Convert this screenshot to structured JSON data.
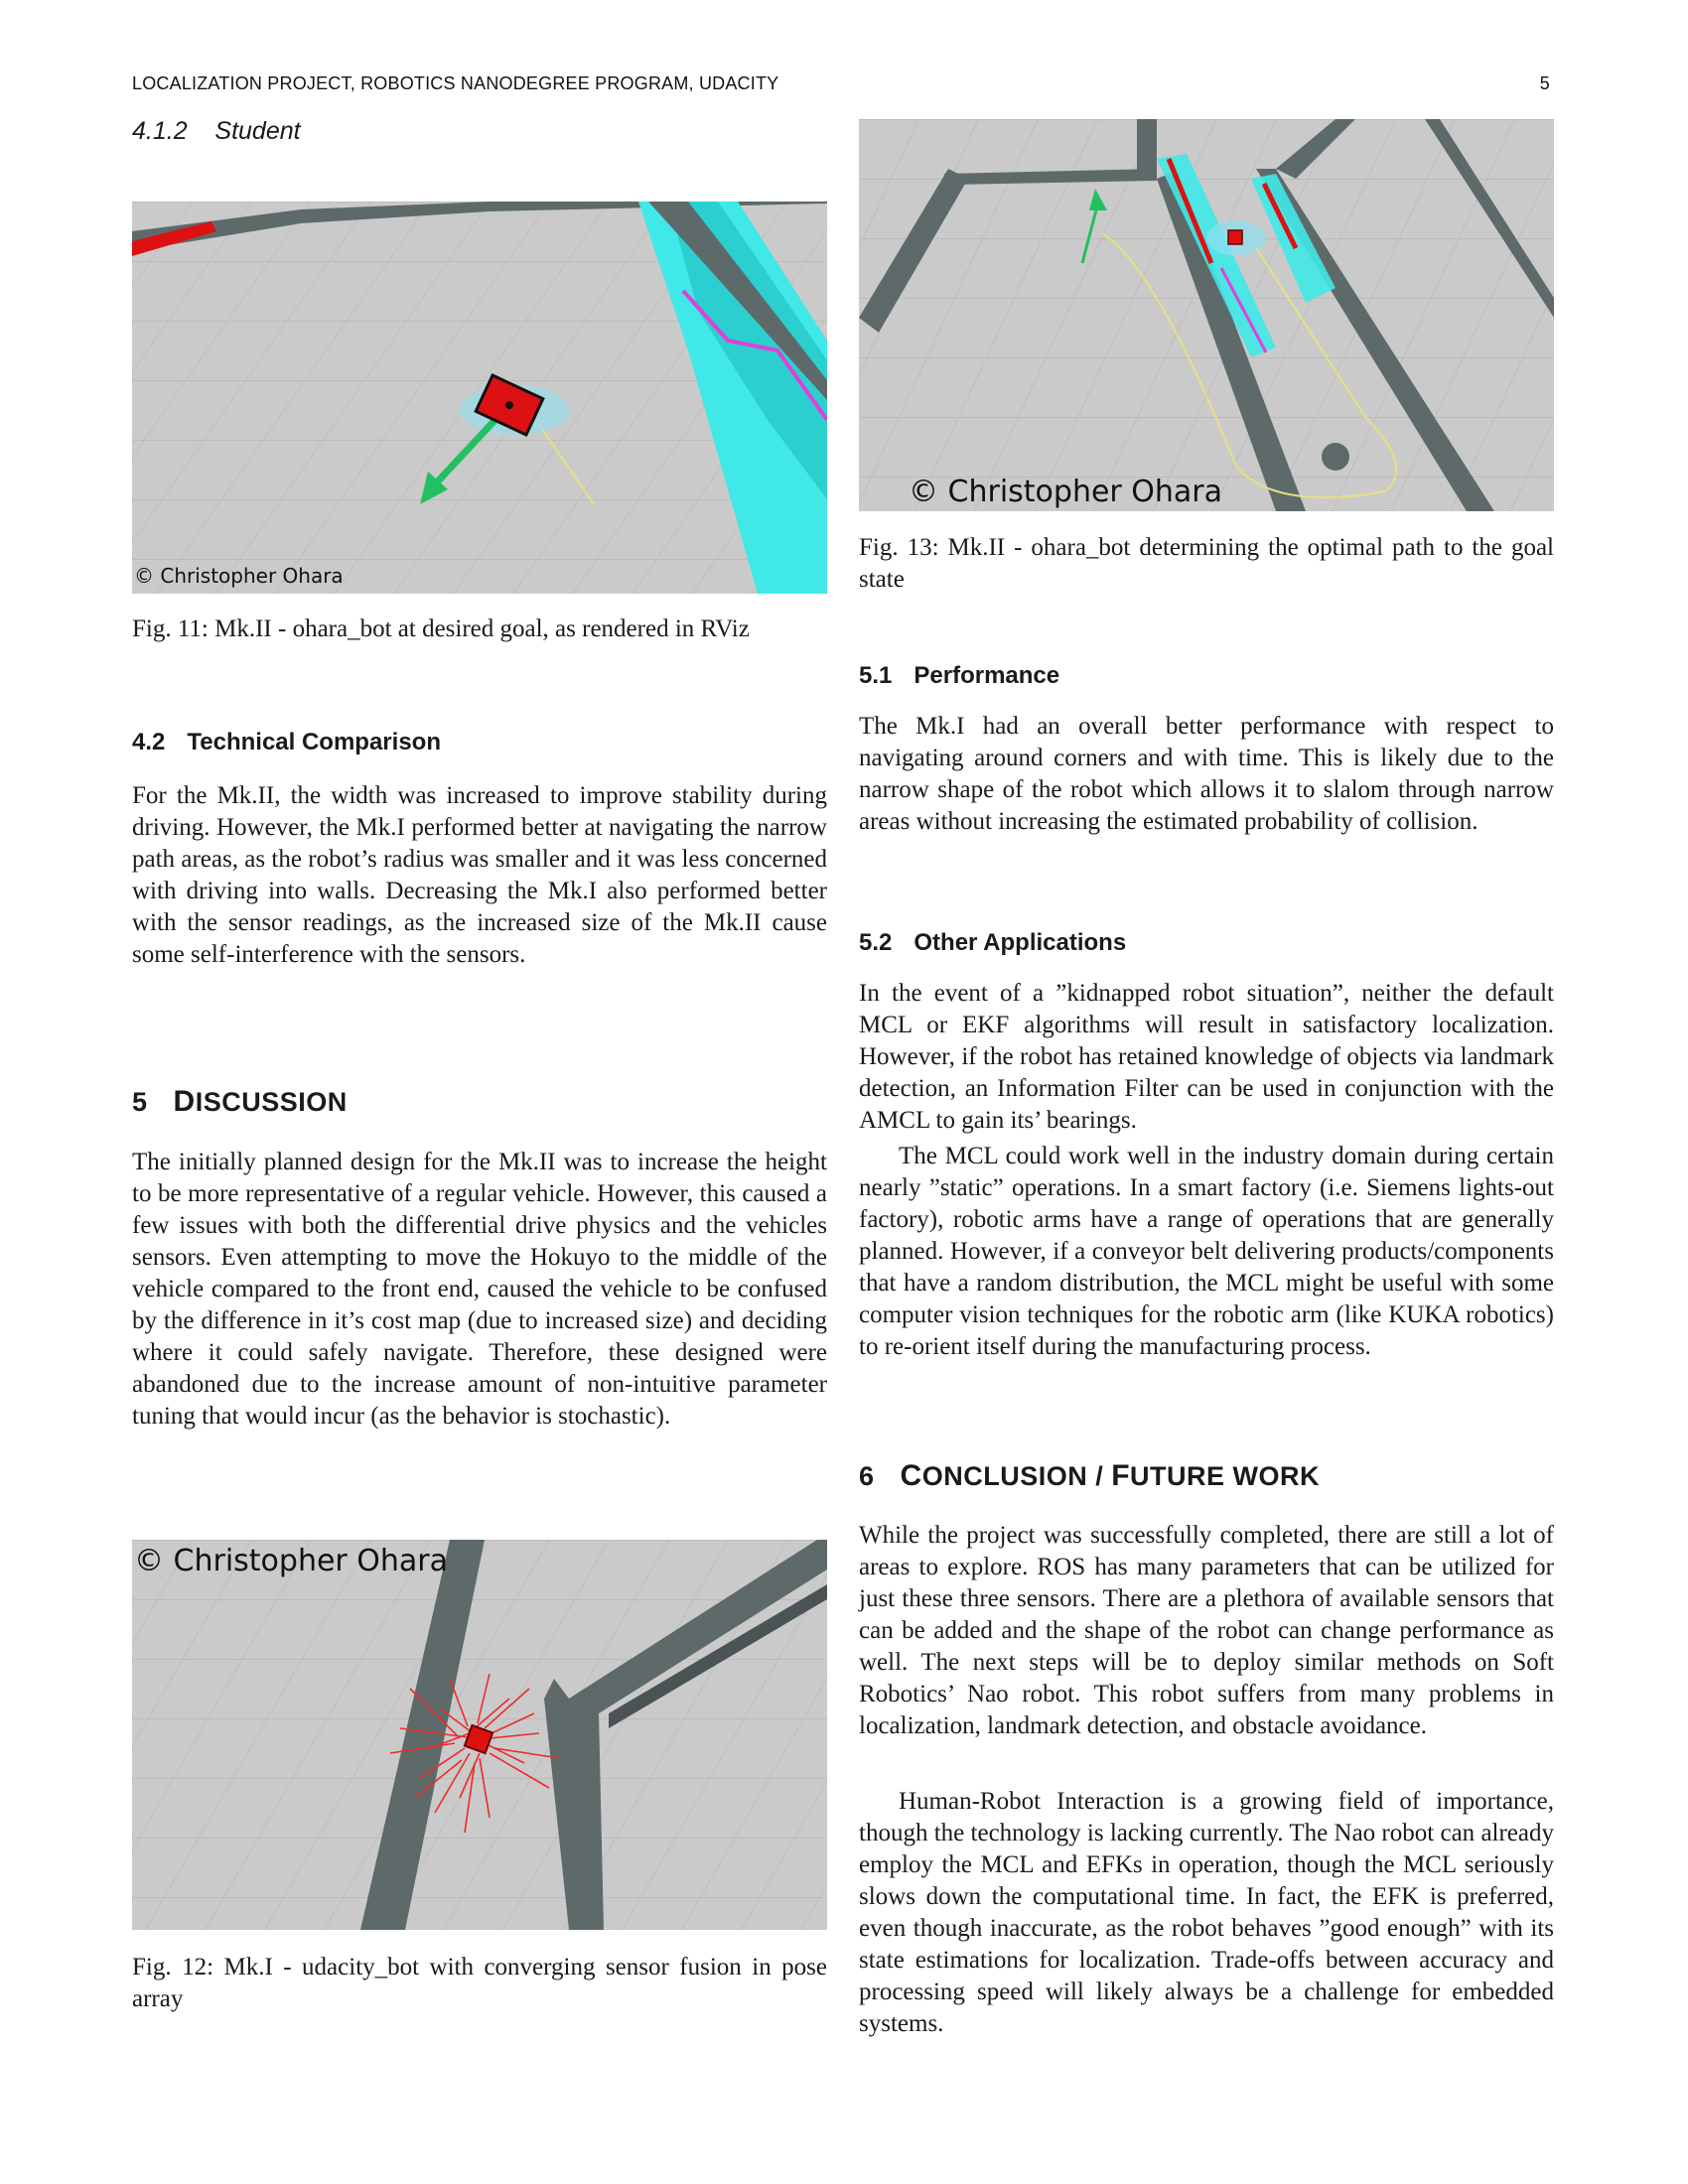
{
  "header": {
    "running_title": "LOCALIZATION PROJECT, ROBOTICS NANODEGREE PROGRAM, UDACITY",
    "page_number": "5"
  },
  "left": {
    "subsubsection": {
      "number": "4.1.2",
      "title": "Student"
    },
    "fig11": {
      "copyright": "© Christopher Ohara",
      "caption": "Fig. 11: Mk.II - ohara_bot at desired goal, as rendered in RViz"
    },
    "section_4_2": {
      "number": "4.2",
      "title": "Technical Comparison",
      "paragraph": "For the Mk.II, the width was increased to improve stability during driving. However, the Mk.I performed better at navigating the narrow path areas, as the robot’s radius was smaller and it was less concerned with driving into walls. Decreasing the Mk.I also performed better with the sensor readings, as the increased size of the Mk.II cause some self-interference with the sensors."
    },
    "section_5": {
      "number": "5",
      "title_first": "D",
      "title_rest": "ISCUSSION",
      "paragraph": "The initially planned design for the Mk.II was to increase the height to be more representative of a regular vehicle. However, this caused a few issues with both the differential drive physics and the vehicles sensors. Even attempting to move the Hokuyo to the middle of the vehicle compared to the front end, caused the vehicle to be confused by the difference in it’s cost map (due to increased size) and deciding where it could safely navigate. Therefore, these designed were abandoned due to the increase amount of non-intuitive parameter tuning that would incur (as the behavior is stochastic)."
    },
    "fig12": {
      "copyright": "© Christopher Ohara",
      "caption": "Fig. 12: Mk.I - udacity_bot with converging sensor fusion in pose array"
    }
  },
  "right": {
    "fig13": {
      "copyright": "© Christopher Ohara",
      "caption": "Fig. 13: Mk.II - ohara_bot determining the optimal path to the goal state"
    },
    "section_5_1": {
      "number": "5.1",
      "title": "Performance",
      "paragraph": "The Mk.I had an overall better performance with respect to navigating around corners and with time. This is likely due to the narrow shape of the robot which allows it to slalom through narrow areas without increasing the estimated probability of collision."
    },
    "section_5_2": {
      "number": "5.2",
      "title": "Other Applications",
      "paragraph1": "In the event of a ”kidnapped robot situation”, neither the default MCL or EKF algorithms will result in satisfactory localization. However, if the robot has retained knowledge of objects via landmark detection, an Information Filter can be used in conjunction with the AMCL to gain its’ bearings.",
      "paragraph2": "The MCL could work well in the industry domain during certain nearly ”static” operations. In a smart factory (i.e. Siemens lights-out factory), robotic arms have a range of operations that are generally planned. However, if a conveyor belt delivering products/components that have a random distribution, the MCL might be useful with some computer vision techniques for the robotic arm (like KUKA robotics) to re-orient itself during the manufacturing process."
    },
    "section_6": {
      "number": "6",
      "title_c": "C",
      "title_onclusion": "ONCLUSION",
      "slash": " / ",
      "title_f": "F",
      "title_uture": "UTURE WORK",
      "paragraph1": "While the project was successfully completed, there are still a lot of areas to explore. ROS has many parameters that can be utilized for just these three sensors. There are a plethora of available sensors that can be added and the shape of the robot can change performance as well. The next steps will be to deploy similar methods on Soft Robotics’ Nao robot. This robot suffers from many problems in localization, landmark detection, and obstacle avoidance.",
      "paragraph2": "Human-Robot Interaction is a growing field of importance, though the technology is lacking currently. The Nao robot can already employ the MCL and EFKs in operation, though the MCL seriously slows down the computational time. In fact, the EFK is preferred, even though inaccurate, as the robot behaves ”good enough” with its state estimations for localization. Trade-offs between accuracy and processing speed will likely always be a challenge for embedded systems."
    }
  },
  "colors": {
    "floor": "#c9c9c9",
    "wall": "#5e6a6a",
    "cyan": "#40e8e8",
    "magenta": "#e040d8",
    "robot": "#dd1111",
    "arrow": "#22c060",
    "path": "#e6e080"
  }
}
